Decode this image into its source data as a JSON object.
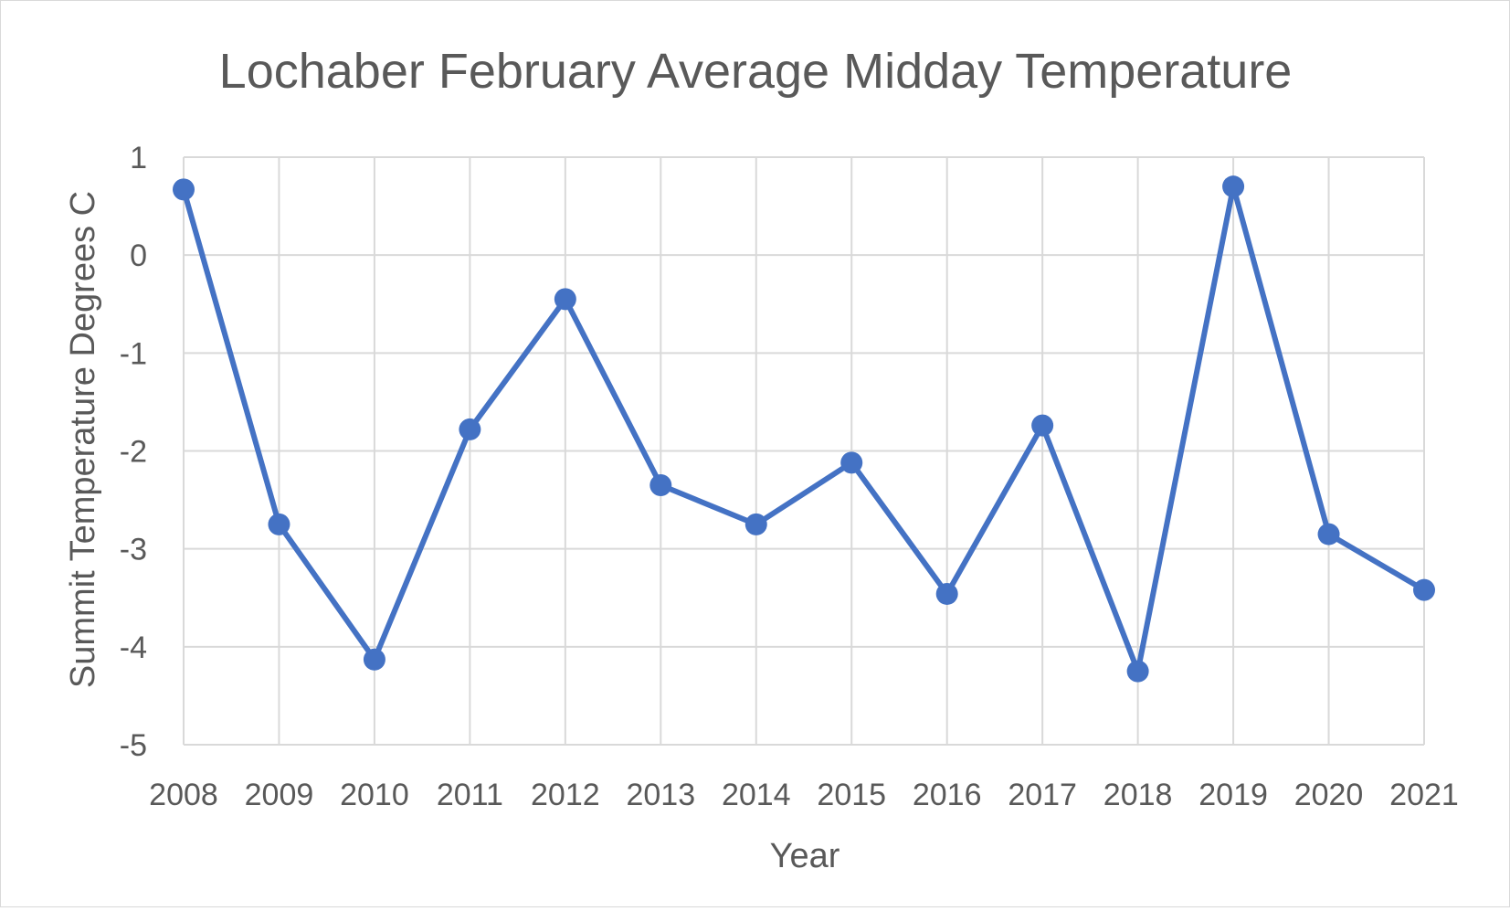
{
  "chart_data": {
    "type": "line",
    "title": "Lochaber February Average Midday Temperature",
    "xlabel": "Year",
    "ylabel": "Summit Temperature Degrees C",
    "categories": [
      "2008",
      "2009",
      "2010",
      "2011",
      "2012",
      "2013",
      "2014",
      "2015",
      "2016",
      "2017",
      "2018",
      "2019",
      "2020",
      "2021"
    ],
    "series": [
      {
        "values": [
          0.67,
          -2.75,
          -4.13,
          -1.78,
          -0.45,
          -2.35,
          -2.75,
          -2.12,
          -3.46,
          -1.74,
          -4.25,
          0.7,
          -2.85,
          -3.42
        ],
        "color": "#4472c4"
      }
    ],
    "ylim": [
      -5,
      1
    ],
    "yticks": [
      1,
      0,
      -1,
      -2,
      -3,
      -4,
      -5
    ],
    "ytick_labels": [
      "1",
      "0",
      "-1",
      "-2",
      "-3",
      "-4",
      "-5"
    ],
    "grid": true,
    "legend": "none",
    "gridline_color": "#d9d9d9"
  }
}
